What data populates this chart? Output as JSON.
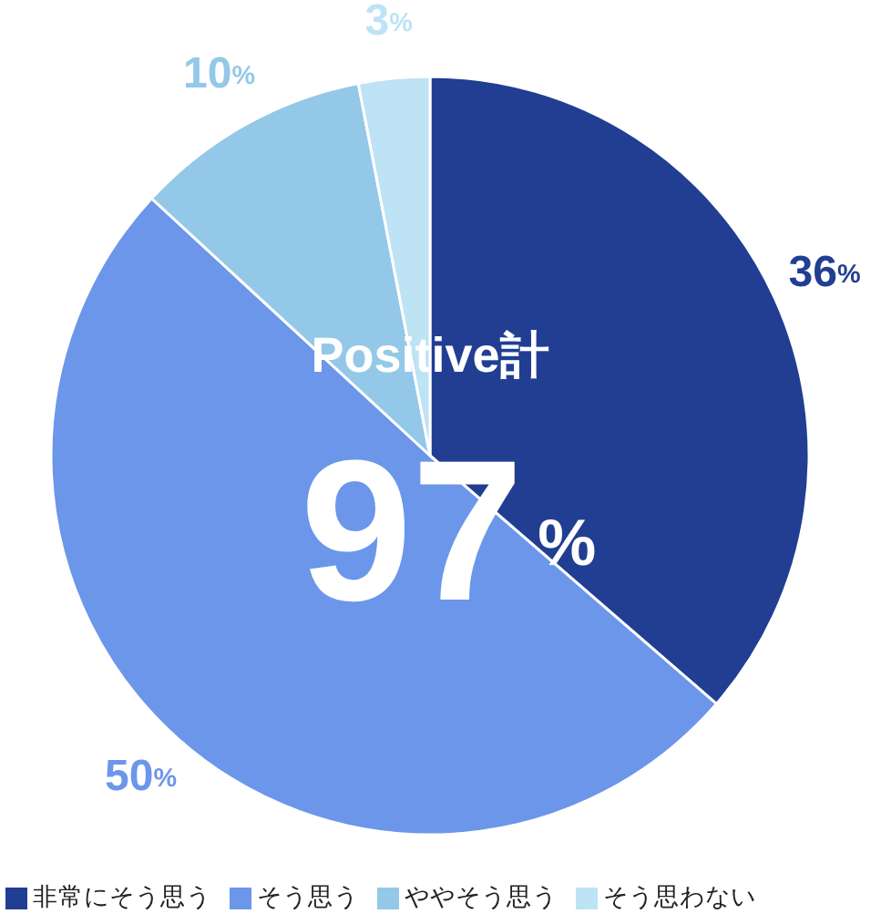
{
  "chart_data": {
    "type": "pie",
    "categories": [
      "非常にそう思う",
      "そう思う",
      "ややそう思う",
      "そう思わない"
    ],
    "values": [
      36,
      50,
      10,
      3
    ],
    "colors": [
      "#213e93",
      "#6b96ea",
      "#94c8e8",
      "#bde3f5"
    ],
    "value_labels": [
      "36%",
      "50%",
      "10%",
      "3%"
    ],
    "annotations": [
      "Positive計",
      "97%"
    ],
    "legend": "bottom"
  }
}
